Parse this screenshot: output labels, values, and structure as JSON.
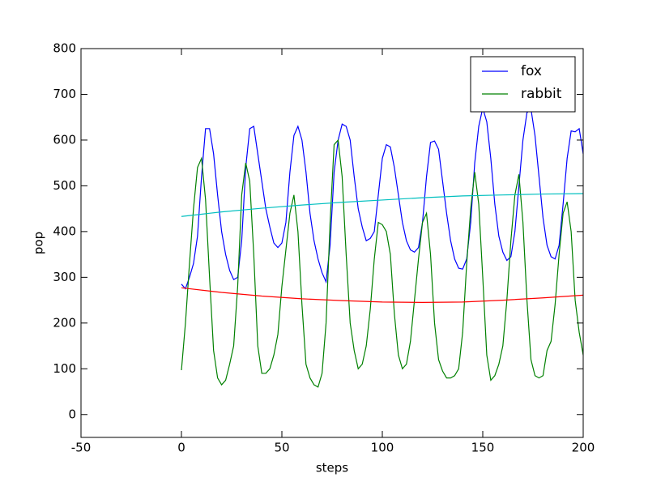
{
  "chart_data": {
    "type": "line",
    "xlabel": "steps",
    "ylabel": "pop",
    "x": [
      0,
      2,
      4,
      6,
      8,
      10,
      12,
      14,
      16,
      18,
      20,
      22,
      24,
      26,
      28,
      30,
      32,
      34,
      36,
      38,
      40,
      42,
      44,
      46,
      48,
      50,
      52,
      54,
      56,
      58,
      60,
      62,
      64,
      66,
      68,
      70,
      72,
      74,
      76,
      78,
      80,
      82,
      84,
      86,
      88,
      90,
      92,
      94,
      96,
      98,
      100,
      102,
      104,
      106,
      108,
      110,
      112,
      114,
      116,
      118,
      120,
      122,
      124,
      126,
      128,
      130,
      132,
      134,
      136,
      138,
      140,
      142,
      144,
      146,
      148,
      150,
      152,
      154,
      156,
      158,
      160,
      162,
      164,
      166,
      168,
      170,
      172,
      174,
      176,
      178,
      180,
      182,
      184,
      186,
      188,
      190,
      192,
      194,
      196,
      198,
      200
    ],
    "series": [
      {
        "name": "fox",
        "color": "#0000ff",
        "values": [
          285,
          275,
          300,
          330,
          390,
          520,
          625,
          625,
          570,
          480,
          400,
          350,
          315,
          295,
          300,
          380,
          540,
          625,
          630,
          570,
          510,
          450,
          410,
          375,
          365,
          375,
          420,
          530,
          610,
          630,
          600,
          530,
          440,
          380,
          340,
          310,
          290,
          370,
          530,
          600,
          635,
          630,
          600,
          520,
          450,
          410,
          380,
          385,
          400,
          480,
          560,
          590,
          585,
          540,
          480,
          420,
          380,
          360,
          355,
          365,
          420,
          520,
          595,
          598,
          580,
          510,
          440,
          380,
          340,
          320,
          318,
          340,
          420,
          550,
          630,
          670,
          640,
          560,
          460,
          390,
          355,
          337,
          345,
          400,
          500,
          600,
          660,
          668,
          610,
          520,
          430,
          370,
          345,
          340,
          370,
          460,
          560,
          620,
          618,
          625,
          570
        ]
      },
      {
        "name": "rabbit",
        "color": "#008000",
        "values": [
          97,
          200,
          330,
          450,
          540,
          560,
          470,
          300,
          140,
          80,
          65,
          75,
          110,
          150,
          280,
          480,
          550,
          510,
          350,
          150,
          90,
          90,
          100,
          130,
          175,
          280,
          360,
          440,
          480,
          400,
          240,
          110,
          80,
          65,
          60,
          90,
          200,
          420,
          590,
          600,
          520,
          350,
          200,
          140,
          100,
          110,
          150,
          230,
          340,
          420,
          415,
          400,
          350,
          220,
          130,
          100,
          110,
          160,
          250,
          340,
          420,
          440,
          350,
          200,
          120,
          95,
          80,
          80,
          85,
          100,
          180,
          330,
          450,
          530,
          460,
          300,
          130,
          75,
          85,
          110,
          150,
          250,
          380,
          480,
          525,
          420,
          250,
          120,
          85,
          80,
          85,
          140,
          160,
          240,
          350,
          440,
          465,
          400,
          250,
          180,
          130
        ]
      },
      {
        "color": "#00bfbf",
        "x": [
          0,
          20,
          40,
          60,
          80,
          100,
          120,
          140,
          160,
          180,
          200
        ],
        "values": [
          433,
          443,
          451,
          458,
          464,
          469,
          474,
          478,
          480,
          482,
          483
        ]
      },
      {
        "color": "#ff0000",
        "x": [
          0,
          20,
          40,
          60,
          80,
          100,
          120,
          140,
          160,
          180,
          200
        ],
        "values": [
          277,
          267,
          259,
          253,
          249,
          246,
          245,
          246,
          250,
          255,
          261
        ]
      }
    ],
    "xlim": [
      -50,
      200
    ],
    "xticks": [
      -50,
      0,
      50,
      100,
      150,
      200
    ],
    "ylim": [
      -50,
      800
    ],
    "yticks": [
      0,
      100,
      200,
      300,
      400,
      500,
      600,
      700,
      800
    ],
    "grid": false,
    "legend": "upper right"
  }
}
